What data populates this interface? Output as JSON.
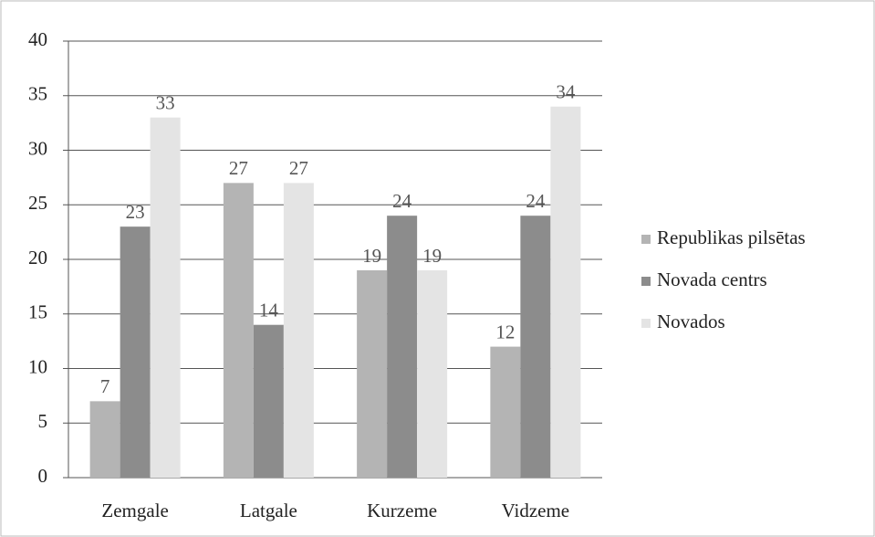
{
  "chart_data": {
    "type": "bar",
    "categories": [
      "Zemgale",
      "Latgale",
      "Kurzeme",
      "Vidzeme"
    ],
    "series": [
      {
        "name": "Republikas pilsētas",
        "color": "#b4b4b4",
        "values": [
          7,
          27,
          19,
          12
        ]
      },
      {
        "name": "Novada centrs",
        "color": "#8c8c8c",
        "values": [
          23,
          14,
          24,
          24
        ]
      },
      {
        "name": "Novados",
        "color": "#e4e4e4",
        "values": [
          33,
          27,
          19,
          34
        ]
      }
    ],
    "ylim": [
      0,
      40
    ],
    "yticks": [
      0,
      5,
      10,
      15,
      20,
      25,
      30,
      35,
      40
    ],
    "grid": true,
    "legend": "right"
  }
}
